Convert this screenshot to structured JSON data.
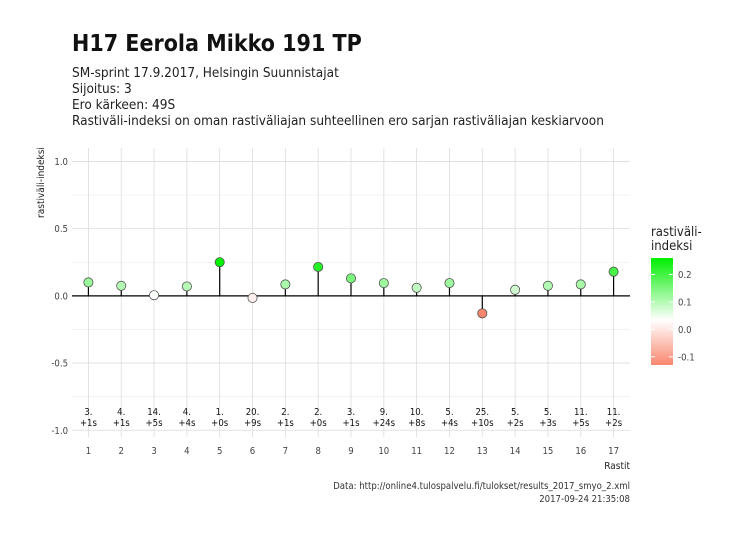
{
  "header": {
    "title": "H17 Eerola Mikko 191 TP",
    "subtitle_lines": [
      "SM-sprint 17.9.2017, Helsingin Suunnistajat",
      "Sijoitus: 3",
      "Ero kärkeen: 49S",
      "Rastiväli-indeksi on oman rastiväliajan suhteellinen ero sarjan rastiväliajan keskiarvoon"
    ]
  },
  "caption": {
    "source": "Data: http://online4.tulospalvelu.fi/tulokset/results_2017_smyo_2.xml",
    "timestamp": "2017-09-24 21:35:08"
  },
  "legend": {
    "title_line1": "rastiväli-",
    "title_line2": "indeksi",
    "ticks": [
      0.2,
      0.1,
      0.0,
      -0.1
    ],
    "tick_labels": [
      "0.2",
      "0.1",
      "0.0",
      "-0.1"
    ],
    "colors": {
      "high": "#00ee00",
      "mid": "#ffffff",
      "low": "#f9876e"
    }
  },
  "chart_data": {
    "type": "lollipop",
    "xlabel": "Rastit",
    "ylabel": "rastiväli-indeksi",
    "xlim": [
      0.5,
      17.5
    ],
    "ylim": [
      -1.05,
      1.1
    ],
    "yticks": [
      1.0,
      0.5,
      0.0,
      -0.5,
      -1.0
    ],
    "ytick_labels": [
      "1.0",
      "0.5",
      "0.0",
      "-0.5",
      "-1.0"
    ],
    "grid": true,
    "legend_position": "right",
    "controls": [
      1,
      2,
      3,
      4,
      5,
      6,
      7,
      8,
      9,
      10,
      11,
      12,
      13,
      14,
      15,
      16,
      17
    ],
    "values": [
      0.1,
      0.075,
      0.005,
      0.07,
      0.25,
      -0.015,
      0.085,
      0.215,
      0.13,
      0.095,
      0.06,
      0.095,
      -0.13,
      0.045,
      0.075,
      0.085,
      0.18
    ],
    "split_rank": [
      "3.",
      "4.",
      "14.",
      "4.",
      "1.",
      "20.",
      "2.",
      "2.",
      "3.",
      "9.",
      "10.",
      "5.",
      "25.",
      "5.",
      "5.",
      "11.",
      "11."
    ],
    "split_diff": [
      "+1s",
      "+1s",
      "+5s",
      "+4s",
      "+0s",
      "+9s",
      "+1s",
      "+0s",
      "+1s",
      "+24s",
      "+8s",
      "+4s",
      "+10s",
      "+2s",
      "+3s",
      "+5s",
      "+2s"
    ]
  }
}
